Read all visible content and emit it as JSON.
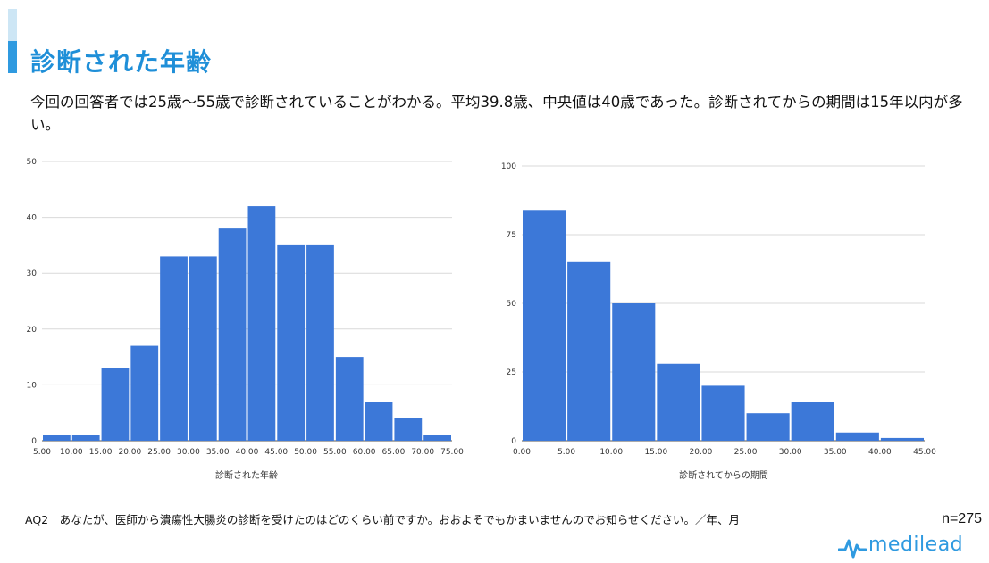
{
  "title": "診断された年齢",
  "summary": "今回の回答者では25歳〜55歳で診断されていることがわかる。平均39.8歳、中央値は40歳であった。診断されてからの期間は15年以内が多い。",
  "footnote": "AQ2　あなたが、医師から潰瘍性大腸炎の診断を受けたのはどのくらい前ですか。おおよそでもかまいませんのでお知らせください。／年、月",
  "sample_size": "n=275",
  "logo_text": "medilead",
  "colors": {
    "bar": "#3c78d8",
    "title": "#1f8fd8",
    "grid": "#d9d9d9"
  },
  "chart_data": [
    {
      "type": "bar",
      "xlabel": "診断された年齢",
      "ylabel": "",
      "x_ticks": [
        "5.00",
        "10.00",
        "15.00",
        "20.00",
        "25.00",
        "30.00",
        "35.00",
        "40.00",
        "45.00",
        "50.00",
        "55.00",
        "60.00",
        "65.00",
        "70.00",
        "75.00"
      ],
      "bin_edges": [
        5,
        10,
        15,
        20,
        25,
        30,
        35,
        40,
        45,
        50,
        55,
        60,
        65,
        70,
        75
      ],
      "values": [
        1,
        1,
        13,
        17,
        33,
        33,
        38,
        42,
        35,
        35,
        15,
        7,
        4,
        1
      ],
      "y_ticks": [
        "0",
        "10",
        "20",
        "30",
        "40",
        "50"
      ],
      "ylim": [
        0,
        50
      ],
      "grid": true
    },
    {
      "type": "bar",
      "xlabel": "診断されてからの期間",
      "ylabel": "",
      "x_ticks": [
        "0.00",
        "5.00",
        "10.00",
        "15.00",
        "20.00",
        "25.00",
        "30.00",
        "35.00",
        "40.00",
        "45.00"
      ],
      "bin_edges": [
        0,
        5,
        10,
        15,
        20,
        25,
        30,
        35,
        40,
        45
      ],
      "values": [
        84,
        65,
        50,
        28,
        20,
        10,
        14,
        3,
        1
      ],
      "y_ticks": [
        "0",
        "25",
        "50",
        "75",
        "100"
      ],
      "ylim": [
        0,
        100
      ],
      "grid": true
    }
  ]
}
